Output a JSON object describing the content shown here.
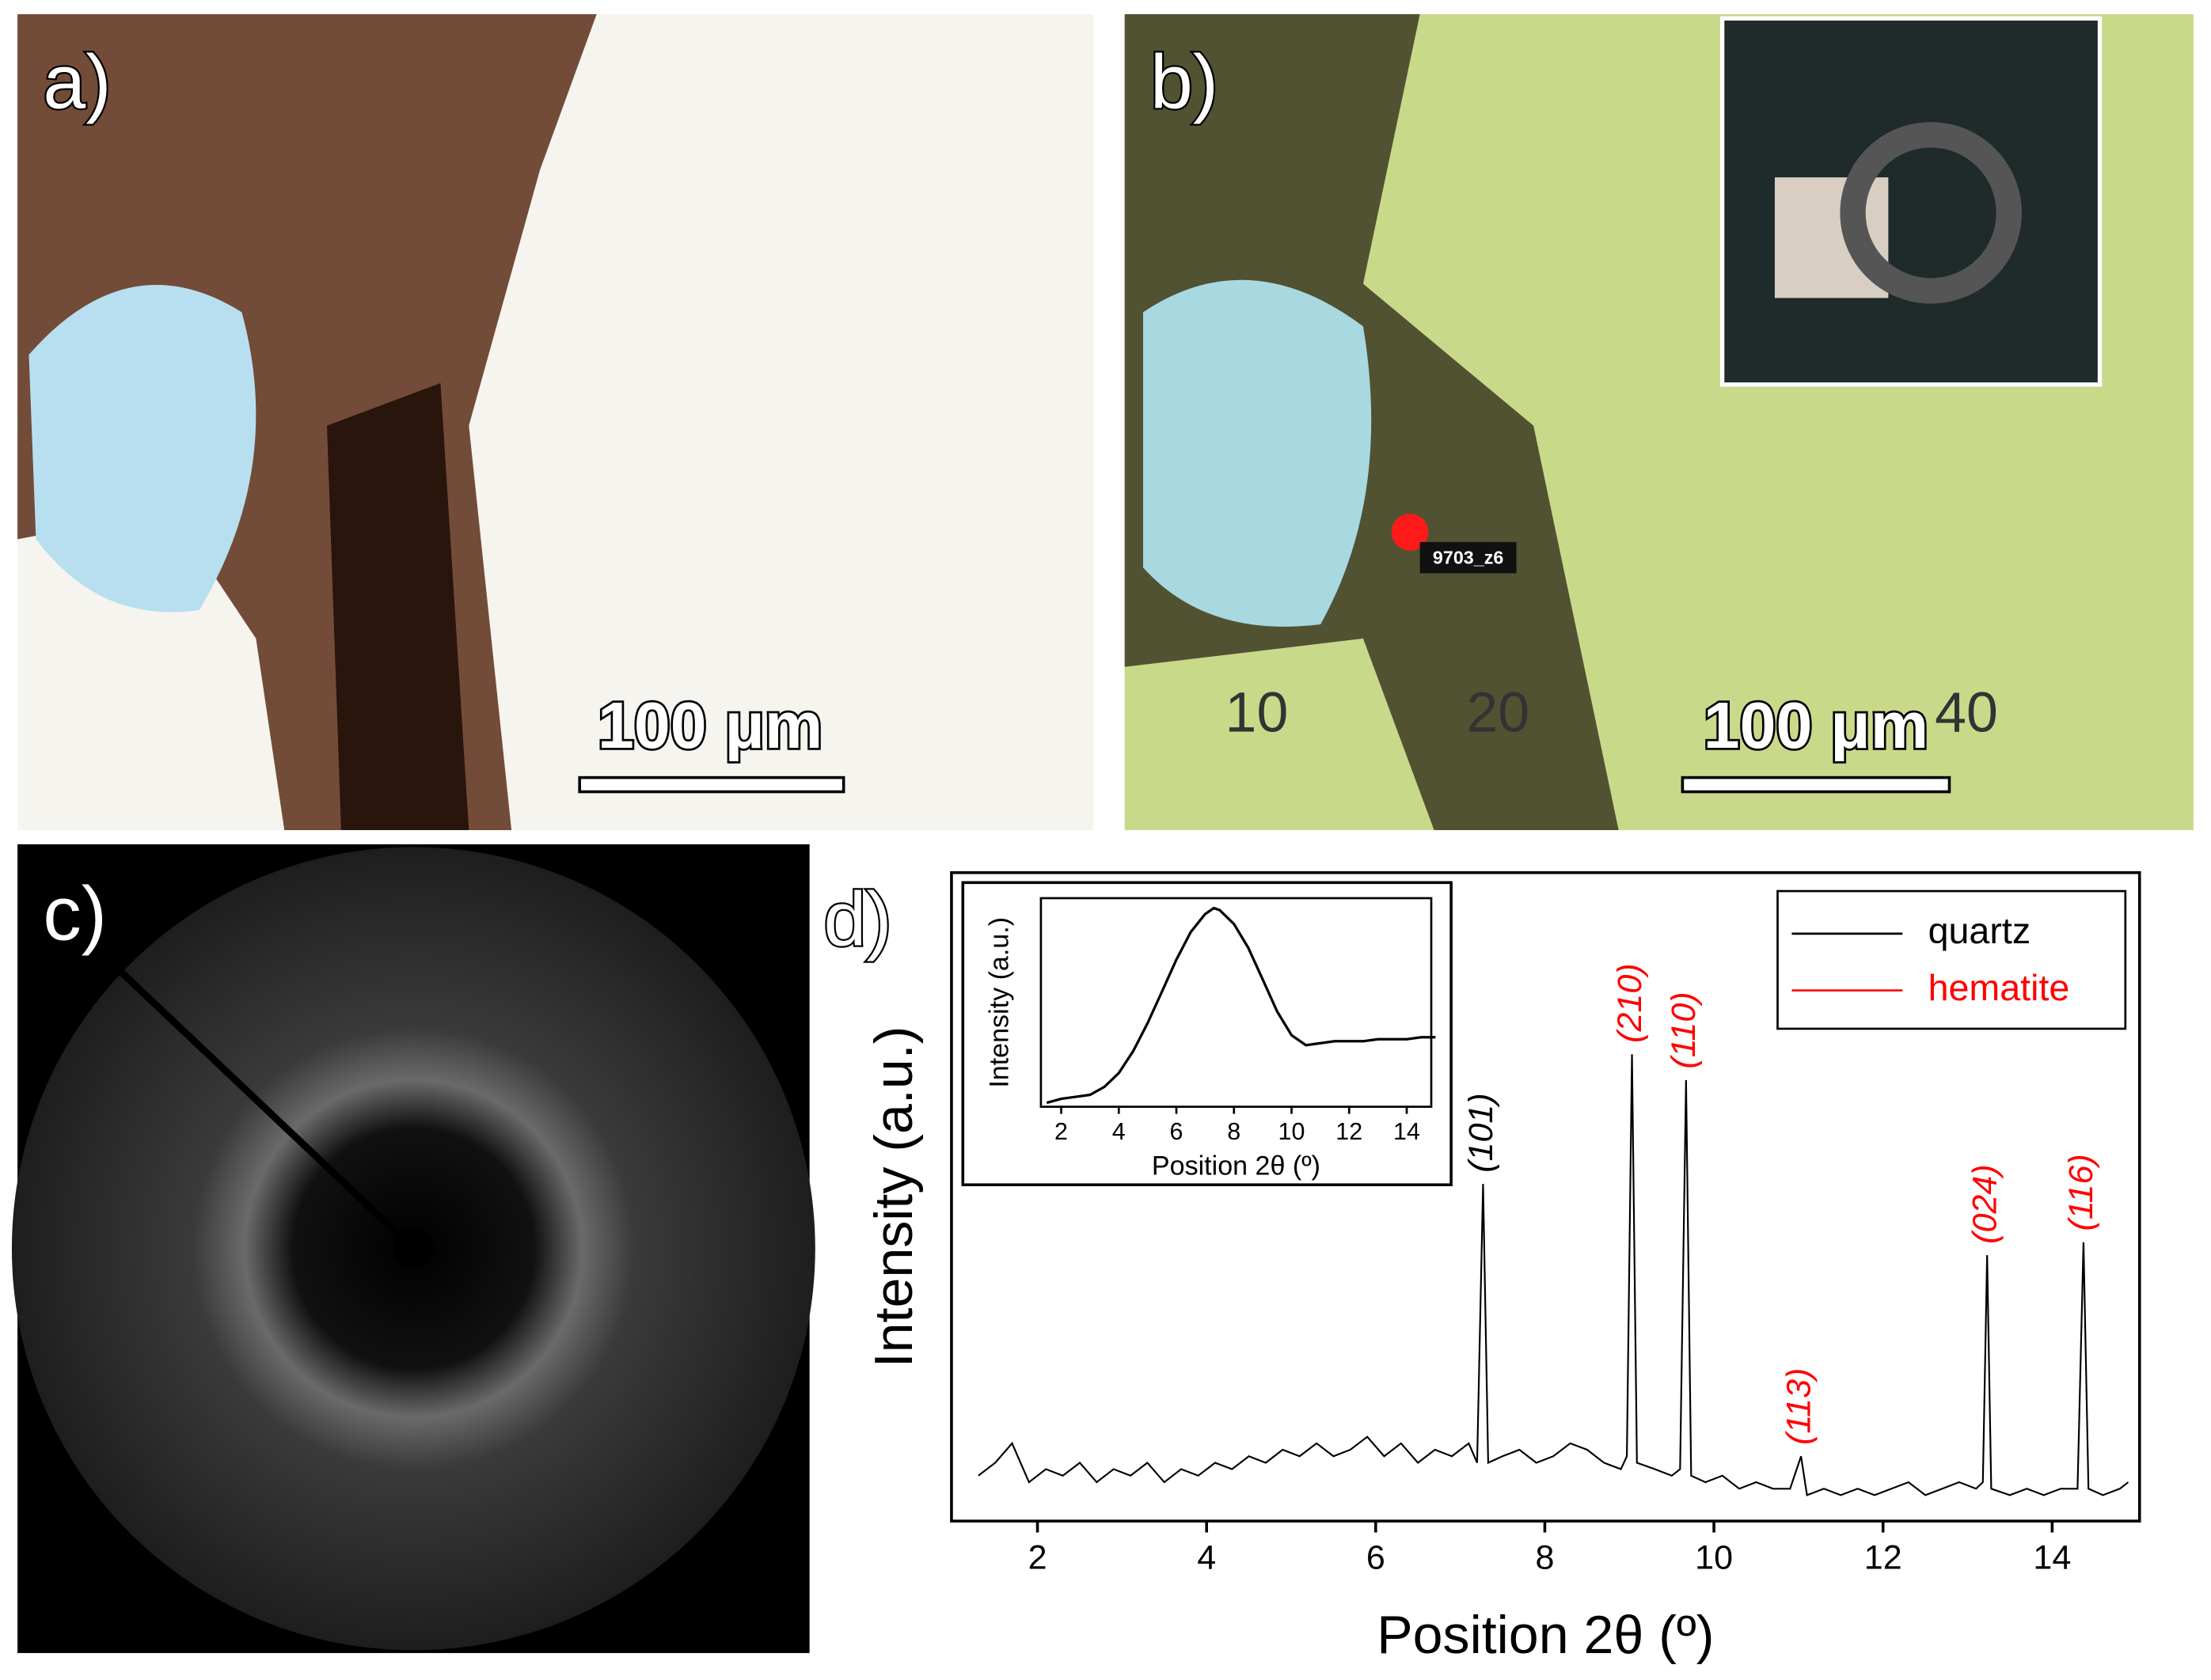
{
  "panels": {
    "a": {
      "label": "a)",
      "scale_bar": "100 μm"
    },
    "b": {
      "label": "b)",
      "scale_bar": "100 μm",
      "point_label": "9703_z6",
      "ruler_labels": [
        "10",
        "20",
        "40"
      ]
    },
    "c": {
      "label": "c)"
    },
    "d": {
      "label": "d)"
    }
  },
  "chart_data": {
    "type": "line",
    "x_label": "Position 2θ (º)",
    "y_label": "Intensity (a.u.)",
    "color": "#000000",
    "xlim": [
      1,
      15
    ],
    "ylim": [
      0,
      100
    ],
    "xticks": [
      2,
      4,
      6,
      8,
      10,
      12,
      14
    ],
    "x": [
      1.3,
      1.5,
      1.7,
      1.9,
      2.1,
      2.3,
      2.5,
      2.7,
      2.9,
      3.1,
      3.3,
      3.5,
      3.7,
      3.9,
      4.1,
      4.3,
      4.5,
      4.7,
      4.9,
      5.1,
      5.3,
      5.5,
      5.7,
      5.9,
      6.1,
      6.3,
      6.5,
      6.7,
      6.9,
      7.1,
      7.2,
      7.27,
      7.33,
      7.5,
      7.7,
      7.9,
      8.1,
      8.3,
      8.5,
      8.7,
      8.9,
      8.97,
      9.03,
      9.09,
      9.3,
      9.5,
      9.6,
      9.67,
      9.73,
      9.9,
      10.1,
      10.3,
      10.5,
      10.7,
      10.9,
      11.03,
      11.1,
      11.3,
      11.5,
      11.7,
      11.9,
      12.1,
      12.3,
      12.5,
      12.7,
      12.9,
      13.1,
      13.18,
      13.23,
      13.28,
      13.5,
      13.7,
      13.9,
      14.1,
      14.3,
      14.37,
      14.43,
      14.6,
      14.8,
      14.9
    ],
    "values": [
      7,
      9,
      12,
      6,
      8,
      7,
      9,
      6,
      8,
      7,
      9,
      6,
      8,
      7,
      9,
      8,
      10,
      9,
      11,
      10,
      12,
      10,
      11,
      13,
      10,
      12,
      9,
      11,
      10,
      12,
      9,
      52,
      9,
      10,
      11,
      9,
      10,
      12,
      11,
      9,
      8,
      10,
      72,
      9,
      8,
      7,
      8,
      68,
      7,
      6,
      7,
      5,
      6,
      5,
      5,
      10,
      4,
      5,
      4,
      5,
      4,
      5,
      6,
      4,
      5,
      6,
      5,
      6,
      41,
      5,
      4,
      5,
      4,
      5,
      5,
      43,
      5,
      4,
      5,
      6
    ],
    "legend": [
      {
        "name": "quartz",
        "color": "#000000"
      },
      {
        "name": "hematite",
        "color": "#ff0000"
      }
    ],
    "legend_position": "upper right",
    "annotations": [
      {
        "text": "(101)",
        "x": 7.27,
        "color": "#000000"
      },
      {
        "text": "(210)",
        "x": 9.03,
        "color": "#ff0000"
      },
      {
        "text": "(110)",
        "x": 9.67,
        "color": "#ff0000"
      },
      {
        "text": "(113)",
        "x": 11.03,
        "color": "#ff0000"
      },
      {
        "text": "(024)",
        "x": 13.23,
        "color": "#ff0000"
      },
      {
        "text": "(116)",
        "x": 14.37,
        "color": "#ff0000"
      }
    ],
    "inset": {
      "type": "line",
      "x_label": "Position 2θ (º)",
      "y_label": "Intensity (a.u.)",
      "color": "#000000",
      "xlim": [
        1,
        15
      ],
      "ylim": [
        0,
        105
      ],
      "xticks": [
        2,
        4,
        6,
        8,
        10,
        12,
        14
      ],
      "x": [
        1.5,
        2,
        2.5,
        3,
        3.5,
        4,
        4.5,
        5,
        5.5,
        6,
        6.5,
        7,
        7.3,
        7.5,
        8,
        8.5,
        9,
        9.5,
        10,
        10.5,
        11,
        11.5,
        12,
        12.5,
        13,
        13.5,
        14,
        14.5,
        15
      ],
      "values": [
        2,
        4,
        5,
        6,
        10,
        17,
        28,
        42,
        58,
        74,
        88,
        97,
        100,
        99,
        92,
        80,
        64,
        48,
        36,
        31,
        32,
        33,
        33,
        33,
        34,
        34,
        34,
        35,
        35
      ]
    }
  }
}
